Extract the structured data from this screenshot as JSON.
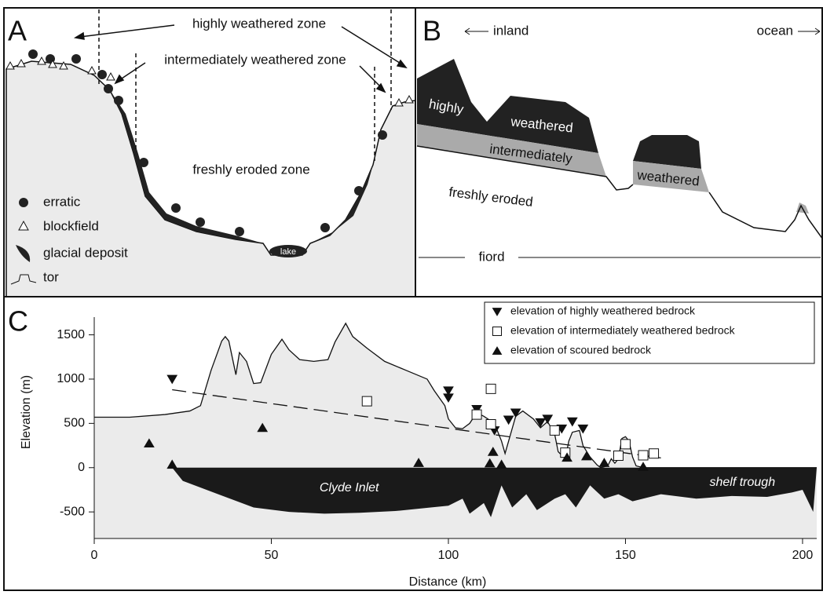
{
  "panel_a": {
    "label": "A",
    "zones": [
      "highly weathered zone",
      "intermediately weathered zone",
      "freshly eroded zone"
    ],
    "lake": "lake",
    "legend": [
      "erratic",
      "blockfield",
      "glacial deposit",
      "tor"
    ]
  },
  "panel_b": {
    "label": "B",
    "inland": "inland",
    "ocean": "ocean",
    "layers": [
      "highly",
      "weathered",
      "intermediately",
      "weathered",
      "freshly eroded"
    ],
    "fiord": "fiord"
  },
  "chart_data": {
    "type": "scatter",
    "label": "C",
    "xlabel": "Distance (km)",
    "ylabel": "Elevation (m)",
    "xlim": [
      0,
      204
    ],
    "ylim": [
      -800,
      1700
    ],
    "xticks": [
      0,
      50,
      100,
      150,
      200
    ],
    "yticks": [
      -500,
      0,
      500,
      1000,
      1500
    ],
    "series": [
      {
        "name": "elevation of highly weathered bedrock",
        "marker": "v",
        "color": "#111",
        "x": [
          22,
          100,
          100,
          108,
          113,
          117,
          119,
          126,
          128,
          132,
          135,
          138
        ],
        "values": [
          1000,
          870,
          790,
          660,
          420,
          540,
          620,
          510,
          550,
          440,
          520,
          440
        ]
      },
      {
        "name": "elevation of intermediately weathered bedrock",
        "marker": "s",
        "color": "#fff",
        "x": [
          77,
          108,
          112,
          112,
          130,
          133,
          148,
          150,
          155,
          158
        ],
        "values": [
          750,
          600,
          890,
          490,
          420,
          170,
          135,
          265,
          140,
          160
        ]
      },
      {
        "name": "elevation of scoured bedrock",
        "marker": "^",
        "color": "#111",
        "x": [
          15.5,
          22,
          47.5,
          91.6,
          112.6,
          111.7,
          115,
          133.5,
          139,
          144,
          155
        ],
        "values": [
          275,
          35,
          450,
          55,
          180,
          50,
          35,
          115,
          130,
          55,
          10
        ]
      }
    ],
    "trend": {
      "x": [
        22,
        160
      ],
      "values": [
        880,
        110
      ]
    },
    "profile": {
      "x": [
        0,
        10,
        20,
        27,
        30,
        33,
        36,
        37,
        38,
        40,
        41,
        43,
        45,
        47,
        50,
        53,
        55,
        58,
        62,
        66,
        68,
        71,
        73,
        77,
        82,
        88,
        94,
        96,
        99,
        100,
        102,
        104,
        106,
        108,
        110,
        113,
        115,
        116,
        117,
        119,
        121,
        124,
        126,
        128,
        130,
        131,
        133,
        134,
        135,
        137,
        138,
        140,
        142,
        143,
        145,
        146,
        147,
        148,
        149,
        150,
        151,
        152,
        153,
        155,
        204
      ],
      "values": [
        570,
        570,
        600,
        640,
        700,
        1100,
        1430,
        1480,
        1430,
        1050,
        1300,
        1200,
        950,
        960,
        1280,
        1450,
        1330,
        1220,
        1200,
        1220,
        1420,
        1630,
        1480,
        1350,
        1200,
        1100,
        1000,
        870,
        700,
        550,
        450,
        440,
        500,
        620,
        580,
        500,
        300,
        160,
        300,
        580,
        640,
        550,
        450,
        520,
        380,
        180,
        100,
        300,
        400,
        420,
        250,
        120,
        30,
        0,
        20,
        100,
        50,
        100,
        330,
        350,
        300,
        120,
        20,
        0,
        0
      ]
    },
    "bathymetry": {
      "x": [
        22,
        25,
        35,
        45,
        55,
        65,
        75,
        85,
        95,
        100,
        104,
        106,
        110,
        112,
        115,
        118,
        122,
        125,
        130,
        133,
        136,
        140,
        144,
        148,
        152,
        160,
        170,
        180,
        190,
        197,
        200,
        203,
        204
      ],
      "values": [
        0,
        -150,
        -300,
        -450,
        -500,
        -520,
        -510,
        -490,
        -450,
        -430,
        -350,
        -520,
        -400,
        -560,
        -200,
        -450,
        -300,
        -480,
        -350,
        -300,
        -450,
        -200,
        -350,
        -300,
        -380,
        -300,
        -350,
        -320,
        -330,
        -280,
        -250,
        -500,
        0
      ]
    },
    "annotations": [
      "Clyde Inlet",
      "shelf trough"
    ]
  }
}
